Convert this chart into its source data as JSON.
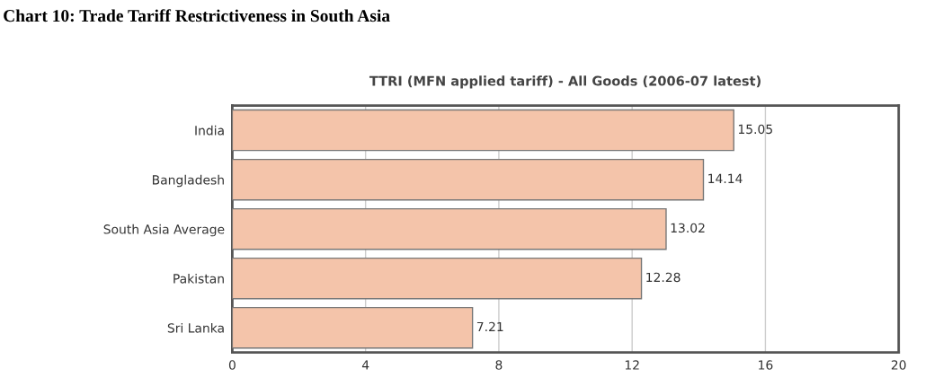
{
  "chart_data": {
    "type": "bar",
    "orientation": "horizontal",
    "title": "Chart 10: Trade Tariff Restrictiveness in South Asia",
    "subtitle": "TTRI (MFN applied tariff) - All Goods (2006-07 latest)",
    "categories": [
      "India",
      "Bangladesh",
      "South Asia Average",
      "Pakistan",
      "Sri Lanka"
    ],
    "values": [
      15.05,
      14.14,
      13.02,
      12.28,
      7.21
    ],
    "color": "#f4c4aa",
    "xlim": [
      0,
      20
    ],
    "xticks": [
      0,
      4,
      8,
      12,
      16,
      20
    ],
    "grid": "x",
    "data_labels": true
  }
}
